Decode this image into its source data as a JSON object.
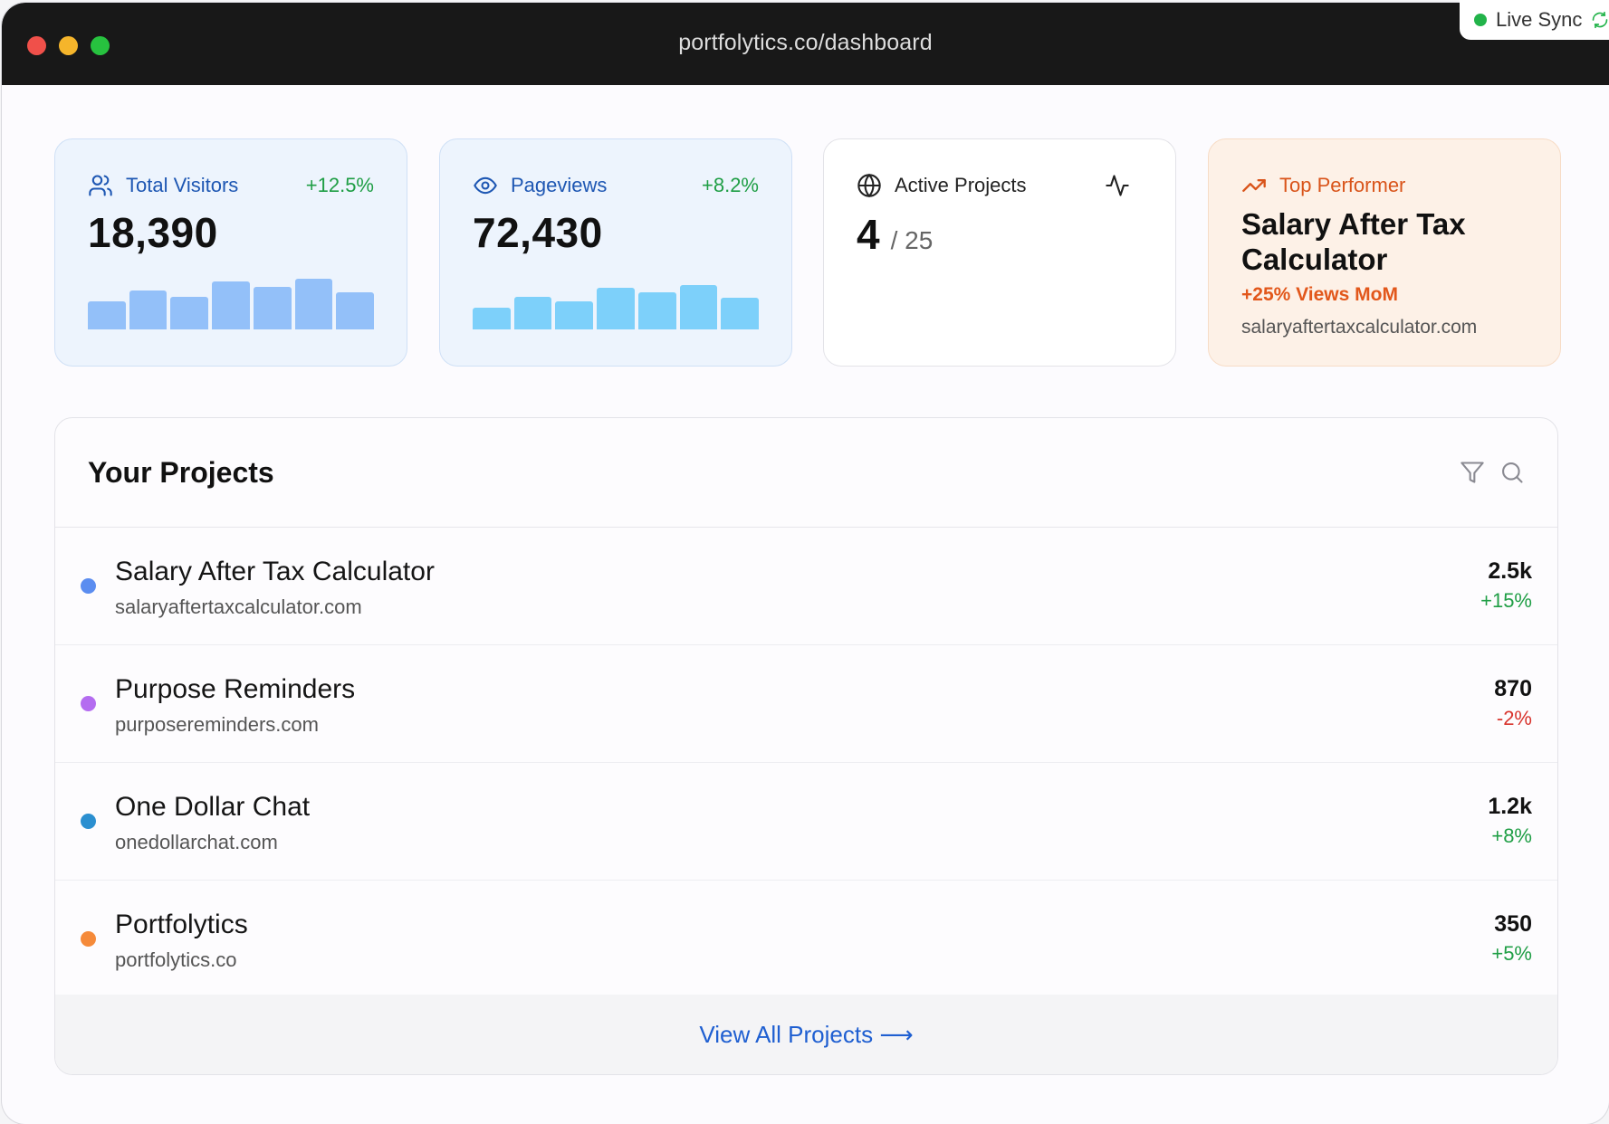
{
  "browser": {
    "url": "portfolytics.co/dashboard",
    "live_sync_label": "Live Sync"
  },
  "kpis": {
    "visitors": {
      "label": "Total Visitors",
      "value": "18,390",
      "delta": "+12.5%",
      "icon": "users-icon",
      "bars": [
        0.44,
        0.62,
        0.52,
        0.76,
        0.67,
        0.8,
        0.58
      ]
    },
    "pageviews": {
      "label": "Pageviews",
      "value": "72,430",
      "delta": "+8.2%",
      "icon": "eye-icon",
      "bars": [
        0.35,
        0.52,
        0.44,
        0.66,
        0.58,
        0.7,
        0.5
      ]
    },
    "active": {
      "label": "Active Projects",
      "count": "4",
      "total": "/ 25",
      "icon": "globe-icon",
      "action_icon": "activity-pulse-icon"
    },
    "top": {
      "label": "Top Performer",
      "title": "Salary After Tax Calculator",
      "growth": "+25% Views MoM",
      "domain": "salaryaftertaxcalculator.com",
      "icon": "trending-up-icon"
    }
  },
  "projects": {
    "title": "Your Projects",
    "items": [
      {
        "name": "Salary After Tax Calculator",
        "domain": "salaryaftertaxcalculator.com",
        "value": "2.5k",
        "change": "+15%",
        "trend": "up",
        "color": "#5b8df0"
      },
      {
        "name": "Purpose Reminders",
        "domain": "purposereminders.com",
        "value": "870",
        "change": "-2%",
        "trend": "down",
        "color": "#b46cf0"
      },
      {
        "name": "One Dollar Chat",
        "domain": "onedollarchat.com",
        "value": "1.2k",
        "change": "+8%",
        "trend": "up",
        "color": "#2b8fd0"
      },
      {
        "name": "Portfolytics",
        "domain": "portfolytics.co",
        "value": "350",
        "change": "+5%",
        "trend": "up",
        "color": "#f58a3a"
      }
    ],
    "view_all": "View All Projects ⟶"
  },
  "colors": {
    "accent_blue": "#1f5fd1",
    "positive": "#1f9e45",
    "negative": "#d8332c",
    "orange": "#e2571b"
  }
}
